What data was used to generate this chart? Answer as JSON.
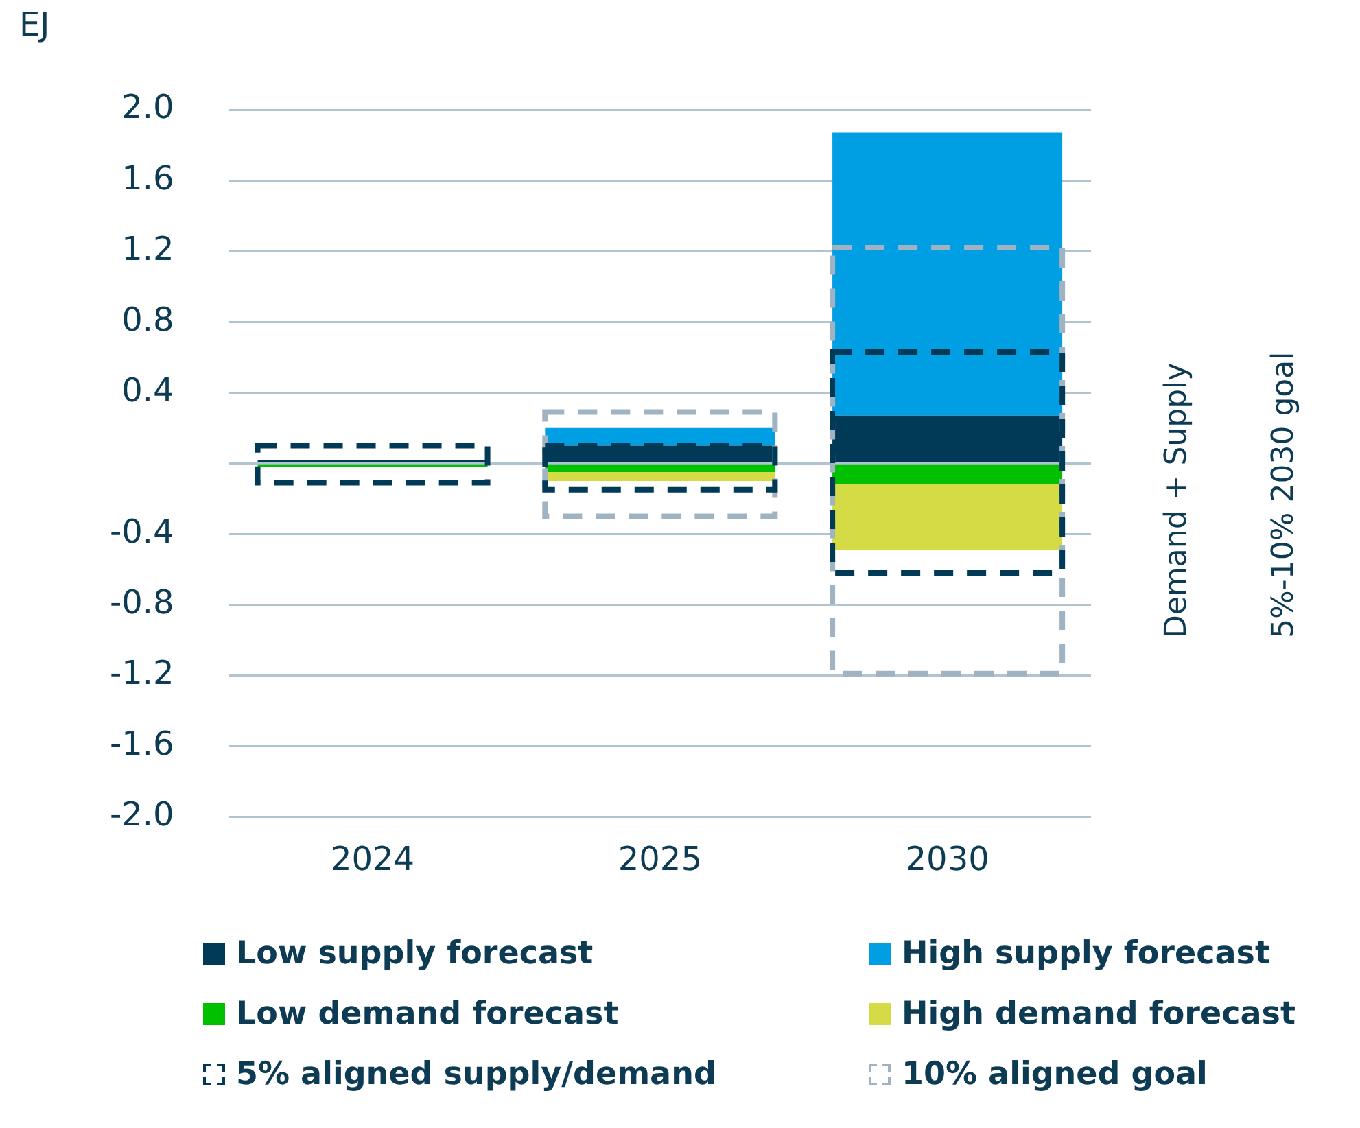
{
  "chart_data": {
    "type": "bar",
    "ylabel": "EJ",
    "categories": [
      "2024",
      "2025",
      "2030"
    ],
    "ylim": [
      -2.0,
      2.0
    ],
    "yticks": [
      {
        "value": -2,
        "label": "-2.0"
      },
      -1.6,
      -1.2,
      -0.8,
      -0.4,
      {
        "value": 0,
        "label": null
      },
      0.4,
      0.8,
      1.2,
      1.6,
      {
        "value": 2,
        "label": "2.0"
      }
    ],
    "grid": "y",
    "legend": "bottom",
    "series": [
      {
        "name": "10% aligned goal",
        "color": "#9fb3c3",
        "line_style": "dashed",
        "base": [
          null,
          -0.3,
          -1.19
        ],
        "values": [
          null,
          0.59,
          2.41
        ]
      },
      {
        "name": "Low supply forecast",
        "color": "#003a57",
        "base": [
          0,
          0,
          0
        ],
        "values": [
          0.02,
          0.1,
          0.27
        ]
      },
      {
        "name": "High supply forecast",
        "color": "#009fe3",
        "base": [
          null,
          0.1,
          0.27
        ],
        "values": [
          null,
          0.1,
          1.6
        ]
      },
      {
        "name": "Low demand forecast",
        "color": "#00c000",
        "base": [
          0,
          0,
          0
        ],
        "values": [
          -0.02,
          -0.05,
          -0.12
        ]
      },
      {
        "name": "High demand forecast",
        "color": "#d4db45",
        "base": [
          null,
          -0.05,
          -0.12
        ],
        "values": [
          null,
          -0.05,
          -0.37
        ]
      },
      {
        "name": "5% aligned supply/demand",
        "color": "#003a57",
        "line_style": "dashed",
        "base": [
          -0.11,
          -0.15,
          -0.62
        ],
        "values": [
          0.21,
          0.25,
          1.25
        ]
      }
    ],
    "annotations": [
      "Demand + Supply",
      "5%-10% 2030 goal"
    ]
  }
}
